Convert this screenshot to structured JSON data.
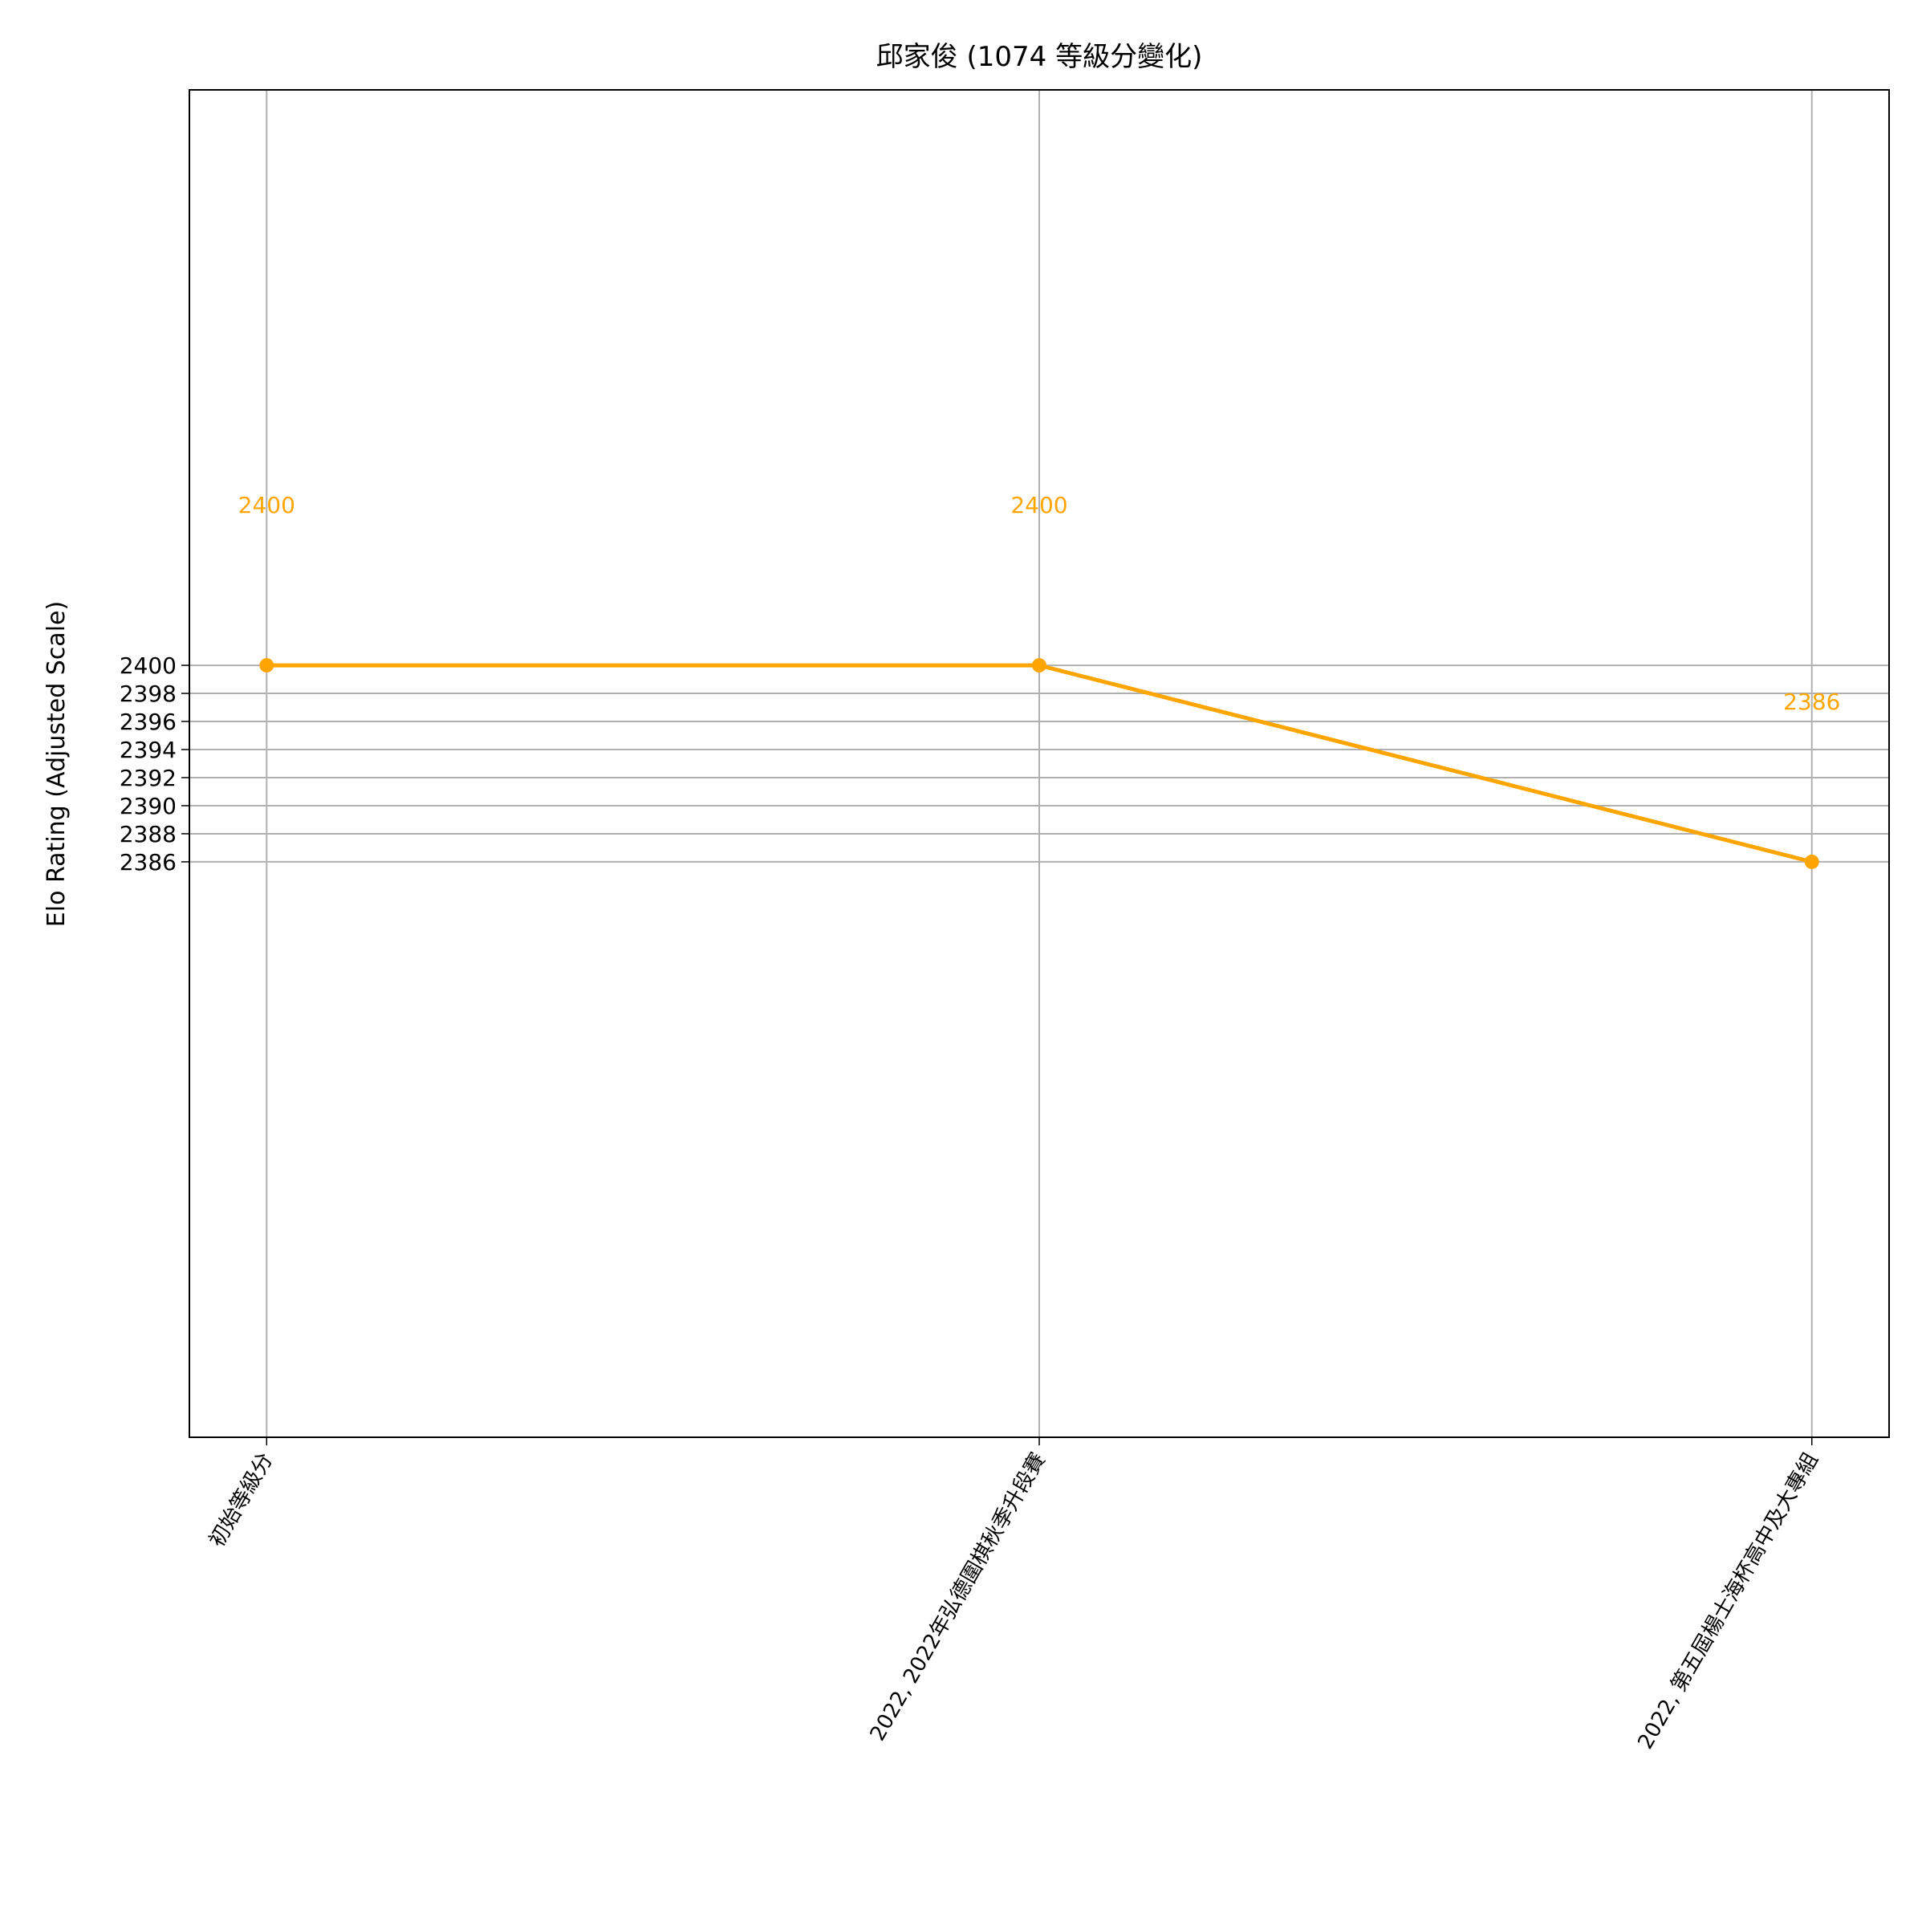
{
  "chart_data": {
    "type": "line",
    "title": "邱家俊 (1074 等級分變化)",
    "y_label": "Elo Rating (Adjusted Scale)",
    "categories": [
      "初始等級分",
      "2022, 2022年弘德圍棋秋季升段賽",
      "2022, 第五屆楊士海杯高中及大專組"
    ],
    "series": [
      {
        "name": "Elo Rating",
        "color": "#ffa500",
        "values": [
          2400,
          2400,
          2386
        ]
      }
    ],
    "ylim": [
      2345,
      2441
    ],
    "yticks": [
      2386,
      2388,
      2390,
      2392,
      2394,
      2396,
      2398,
      2400
    ],
    "grid": true
  }
}
